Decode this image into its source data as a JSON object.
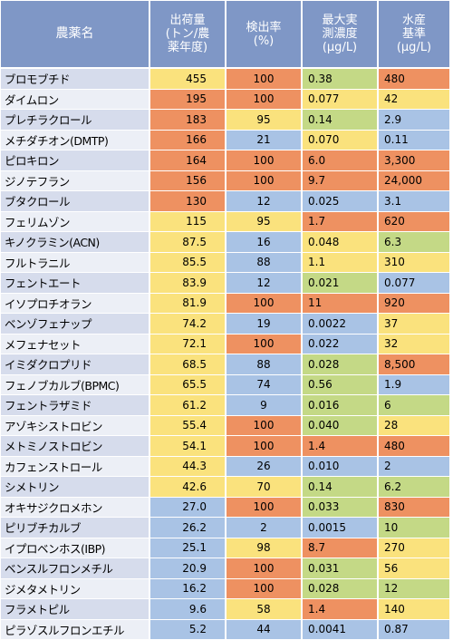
{
  "headers": [
    "農薬名",
    "出荷量\n(トン/農\n薬年度)",
    "検出率\n(%)",
    "最大実\n測濃度\n(µg/L)",
    "水産\n基準\n(µg/L)"
  ],
  "colors": {
    "yellow": "#fae27d",
    "orange": "#ee9161",
    "blue": "#a9c3e5",
    "green": "#c4d986",
    "header": "#7f97c6"
  },
  "rows": [
    {
      "name": "ブロモブチド",
      "shipment": "455",
      "shipment_c": "y",
      "rate": "100",
      "rate_c": "o",
      "max": "0.38",
      "max_c": "g",
      "std": "480",
      "std_c": "o"
    },
    {
      "name": "ダイムロン",
      "shipment": "195",
      "shipment_c": "o",
      "rate": "100",
      "rate_c": "o",
      "max": "0.077",
      "max_c": "y",
      "std": "42",
      "std_c": "y"
    },
    {
      "name": "プレチラクロール",
      "shipment": "183",
      "shipment_c": "o",
      "rate": "95",
      "rate_c": "y",
      "max": "0.14",
      "max_c": "g",
      "std": "2.9",
      "std_c": "b"
    },
    {
      "name": "メチダチオン(DMTP)",
      "shipment": "166",
      "shipment_c": "o",
      "rate": "21",
      "rate_c": "b",
      "max": "0.070",
      "max_c": "y",
      "std": "0.11",
      "std_c": "b"
    },
    {
      "name": "ピロキロン",
      "shipment": "164",
      "shipment_c": "o",
      "rate": "100",
      "rate_c": "o",
      "max": "6.0",
      "max_c": "o",
      "std": "3,300",
      "std_c": "o"
    },
    {
      "name": "ジノテフラン",
      "shipment": "156",
      "shipment_c": "o",
      "rate": "100",
      "rate_c": "o",
      "max": "9.7",
      "max_c": "o",
      "std": "24,000",
      "std_c": "o"
    },
    {
      "name": "ブタクロール",
      "shipment": "130",
      "shipment_c": "o",
      "rate": "12",
      "rate_c": "b",
      "max": "0.025",
      "max_c": "b",
      "std": "3.1",
      "std_c": "b"
    },
    {
      "name": "フェリムゾン",
      "shipment": "115",
      "shipment_c": "y",
      "rate": "95",
      "rate_c": "y",
      "max": "1.7",
      "max_c": "o",
      "std": "620",
      "std_c": "o"
    },
    {
      "name": "キノクラミン(ACN)",
      "shipment": "87.5",
      "shipment_c": "y",
      "rate": "16",
      "rate_c": "b",
      "max": "0.048",
      "max_c": "y",
      "std": "6.3",
      "std_c": "g"
    },
    {
      "name": "フルトラニル",
      "shipment": "85.5",
      "shipment_c": "y",
      "rate": "88",
      "rate_c": "b",
      "max": "1.1",
      "max_c": "y",
      "std": "310",
      "std_c": "y"
    },
    {
      "name": "フェントエート",
      "shipment": "83.9",
      "shipment_c": "y",
      "rate": "12",
      "rate_c": "b",
      "max": "0.021",
      "max_c": "g",
      "std": "0.077",
      "std_c": "b"
    },
    {
      "name": "イソプロチオラン",
      "shipment": "81.9",
      "shipment_c": "y",
      "rate": "100",
      "rate_c": "o",
      "max": "11",
      "max_c": "o",
      "std": "920",
      "std_c": "o"
    },
    {
      "name": "ベンゾフェナップ",
      "shipment": "74.2",
      "shipment_c": "y",
      "rate": "19",
      "rate_c": "b",
      "max": "0.0022",
      "max_c": "b",
      "std": "37",
      "std_c": "y"
    },
    {
      "name": "メフェナセット",
      "shipment": "72.1",
      "shipment_c": "y",
      "rate": "100",
      "rate_c": "o",
      "max": "0.022",
      "max_c": "b",
      "std": "32",
      "std_c": "y"
    },
    {
      "name": "イミダクロプリド",
      "shipment": "68.5",
      "shipment_c": "y",
      "rate": "88",
      "rate_c": "b",
      "max": "0.028",
      "max_c": "g",
      "std": "8,500",
      "std_c": "o"
    },
    {
      "name": "フェノブカルブ(BPMC)",
      "shipment": "65.5",
      "shipment_c": "y",
      "rate": "74",
      "rate_c": "b",
      "max": "0.56",
      "max_c": "g",
      "std": "1.9",
      "std_c": "b"
    },
    {
      "name": "フェントラザミド",
      "shipment": "61.2",
      "shipment_c": "y",
      "rate": "9",
      "rate_c": "b",
      "max": "0.016",
      "max_c": "g",
      "std": "6",
      "std_c": "g"
    },
    {
      "name": "アゾキシストロビン",
      "shipment": "55.4",
      "shipment_c": "y",
      "rate": "100",
      "rate_c": "o",
      "max": "0.040",
      "max_c": "g",
      "std": "28",
      "std_c": "y"
    },
    {
      "name": "メトミノストロビン",
      "shipment": "54.1",
      "shipment_c": "y",
      "rate": "100",
      "rate_c": "o",
      "max": "1.4",
      "max_c": "o",
      "std": "480",
      "std_c": "o"
    },
    {
      "name": "カフェンストロール",
      "shipment": "44.3",
      "shipment_c": "y",
      "rate": "26",
      "rate_c": "b",
      "max": "0.010",
      "max_c": "b",
      "std": "2",
      "std_c": "b"
    },
    {
      "name": "シメトリン",
      "shipment": "42.6",
      "shipment_c": "y",
      "rate": "70",
      "rate_c": "y",
      "max": "0.14",
      "max_c": "g",
      "std": "6.2",
      "std_c": "g"
    },
    {
      "name": "オキサジクロメホン",
      "shipment": "27.0",
      "shipment_c": "b",
      "rate": "100",
      "rate_c": "o",
      "max": "0.033",
      "max_c": "g",
      "std": "830",
      "std_c": "o"
    },
    {
      "name": "ピリブチカルブ",
      "shipment": "26.2",
      "shipment_c": "b",
      "rate": "2",
      "rate_c": "b",
      "max": "0.0015",
      "max_c": "b",
      "std": "10",
      "std_c": "g"
    },
    {
      "name": "イプロベンホス(IBP)",
      "shipment": "25.1",
      "shipment_c": "b",
      "rate": "98",
      "rate_c": "y",
      "max": "8.7",
      "max_c": "o",
      "std": "270",
      "std_c": "y"
    },
    {
      "name": "ベンスルフロンメチル",
      "shipment": "20.9",
      "shipment_c": "b",
      "rate": "100",
      "rate_c": "o",
      "max": "0.031",
      "max_c": "g",
      "std": "56",
      "std_c": "y"
    },
    {
      "name": "ジメタメトリン",
      "shipment": "16.2",
      "shipment_c": "b",
      "rate": "100",
      "rate_c": "o",
      "max": "0.028",
      "max_c": "g",
      "std": "12",
      "std_c": "g"
    },
    {
      "name": "フラメトピル",
      "shipment": "9.6",
      "shipment_c": "b",
      "rate": "58",
      "rate_c": "y",
      "max": "1.4",
      "max_c": "o",
      "std": "140",
      "std_c": "y"
    },
    {
      "name": "ピラゾスルフロンエチル",
      "shipment": "5.2",
      "shipment_c": "b",
      "rate": "44",
      "rate_c": "b",
      "max": "0.0041",
      "max_c": "b",
      "std": "0.87",
      "std_c": "b"
    }
  ]
}
